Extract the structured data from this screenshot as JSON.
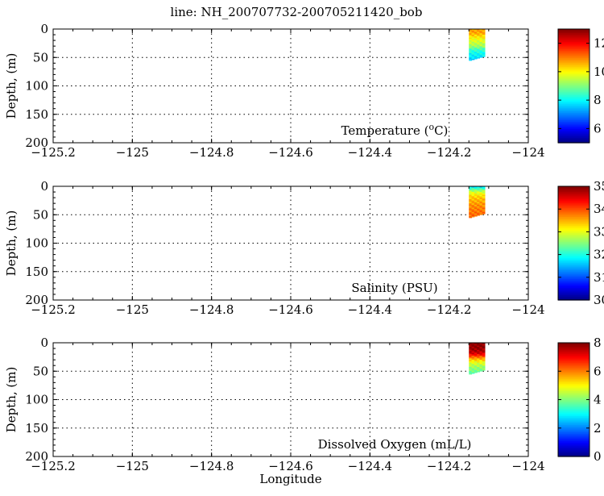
{
  "figure_title": "line: NH_200707732-200705211420_bob",
  "chart_data": [
    {
      "type": "heatmap",
      "annotation": "Temperature (",
      "annotation_sup": "o",
      "annotation_tail": "C)",
      "ylabel": "Depth, (m)",
      "xlabel": "",
      "xlim": [
        -125.2,
        -124.0
      ],
      "ylim": [
        0,
        200
      ],
      "y_reversed": true,
      "xticks": [
        -125.2,
        -125,
        -124.8,
        -124.6,
        -124.4,
        -124.2,
        -124
      ],
      "yticks": [
        0,
        50,
        100,
        150,
        200
      ],
      "grid": true,
      "colorbar": {
        "min": 5,
        "max": 13,
        "ticks": [
          6,
          8,
          10,
          12
        ],
        "colormap": "jet"
      },
      "data_extent": {
        "lon_min": -124.15,
        "lon_max": -124.11,
        "depth_min": 0,
        "depth_max": 55
      },
      "profile": [
        {
          "depth": 0,
          "value": 10.6
        },
        {
          "depth": 5,
          "value": 10.8
        },
        {
          "depth": 10,
          "value": 10.5
        },
        {
          "depth": 15,
          "value": 10.1
        },
        {
          "depth": 20,
          "value": 9.8
        },
        {
          "depth": 25,
          "value": 9.5
        },
        {
          "depth": 30,
          "value": 9.3
        },
        {
          "depth": 35,
          "value": 8.6
        },
        {
          "depth": 40,
          "value": 8.2
        },
        {
          "depth": 45,
          "value": 8.0
        },
        {
          "depth": 50,
          "value": 7.8
        },
        {
          "depth": 55,
          "value": 7.6
        }
      ]
    },
    {
      "type": "heatmap",
      "annotation": "Salinity (PSU)",
      "ylabel": "Depth, (m)",
      "xlabel": "",
      "xlim": [
        -125.2,
        -124.0
      ],
      "ylim": [
        0,
        200
      ],
      "y_reversed": true,
      "xticks": [
        -125.2,
        -125,
        -124.8,
        -124.6,
        -124.4,
        -124.2,
        -124
      ],
      "yticks": [
        0,
        50,
        100,
        150,
        200
      ],
      "grid": true,
      "colorbar": {
        "min": 30,
        "max": 35,
        "ticks": [
          30,
          31,
          32,
          33,
          34,
          35
        ],
        "colormap": "jet"
      },
      "data_extent": {
        "lon_min": -124.15,
        "lon_max": -124.11,
        "depth_min": 0,
        "depth_max": 55
      },
      "profile": [
        {
          "depth": 0,
          "value": 31.6
        },
        {
          "depth": 5,
          "value": 32.3
        },
        {
          "depth": 10,
          "value": 32.9
        },
        {
          "depth": 15,
          "value": 33.2
        },
        {
          "depth": 20,
          "value": 33.4
        },
        {
          "depth": 25,
          "value": 33.5
        },
        {
          "depth": 30,
          "value": 33.6
        },
        {
          "depth": 35,
          "value": 33.7
        },
        {
          "depth": 40,
          "value": 33.75
        },
        {
          "depth": 45,
          "value": 33.8
        },
        {
          "depth": 50,
          "value": 33.85
        },
        {
          "depth": 55,
          "value": 33.9
        }
      ]
    },
    {
      "type": "heatmap",
      "annotation": "Dissolved Oxygen (mL/L)",
      "ylabel": "Depth, (m)",
      "xlabel": "Longitude",
      "xlim": [
        -125.2,
        -124.0
      ],
      "ylim": [
        0,
        200
      ],
      "y_reversed": true,
      "xticks": [
        -125.2,
        -125,
        -124.8,
        -124.6,
        -124.4,
        -124.2,
        -124
      ],
      "yticks": [
        0,
        50,
        100,
        150,
        200
      ],
      "grid": true,
      "colorbar": {
        "min": 0,
        "max": 8,
        "ticks": [
          0,
          2,
          4,
          6,
          8
        ],
        "colormap": "jet"
      },
      "data_extent": {
        "lon_min": -124.15,
        "lon_max": -124.11,
        "depth_min": 0,
        "depth_max": 55
      },
      "profile": [
        {
          "depth": 0,
          "value": 7.9
        },
        {
          "depth": 5,
          "value": 7.9
        },
        {
          "depth": 10,
          "value": 7.8
        },
        {
          "depth": 15,
          "value": 7.6
        },
        {
          "depth": 20,
          "value": 7.2
        },
        {
          "depth": 25,
          "value": 6.2
        },
        {
          "depth": 30,
          "value": 5.4
        },
        {
          "depth": 35,
          "value": 4.8
        },
        {
          "depth": 40,
          "value": 4.4
        },
        {
          "depth": 45,
          "value": 4.1
        },
        {
          "depth": 50,
          "value": 3.9
        },
        {
          "depth": 55,
          "value": 3.7
        }
      ]
    }
  ]
}
